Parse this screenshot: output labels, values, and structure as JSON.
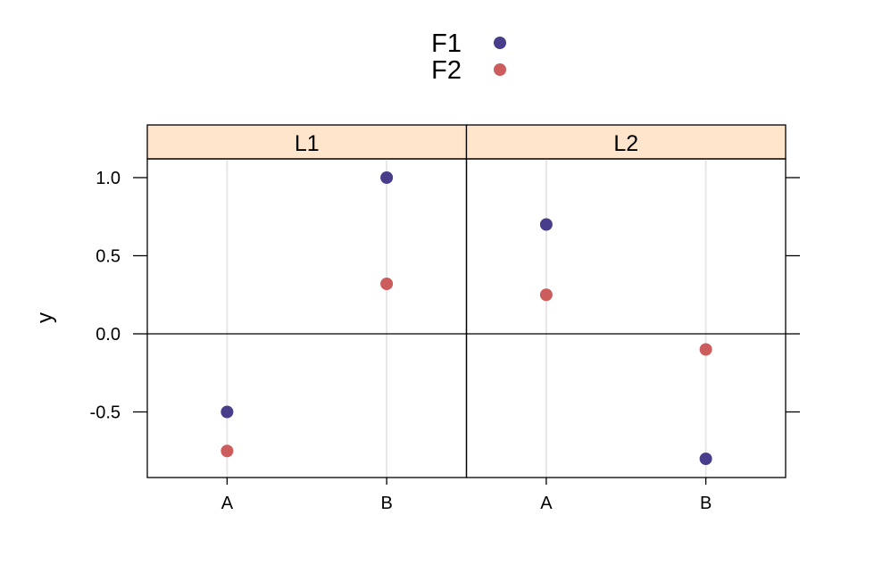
{
  "chart_data": {
    "type": "scatter",
    "title": "",
    "xlabel": "",
    "ylabel": "y",
    "ylim": [
      -0.92,
      1.12
    ],
    "yticks": [
      -0.5,
      0.0,
      0.5,
      1.0
    ],
    "ytick_labels": [
      "-0.5",
      "0.0",
      "0.5",
      "1.0"
    ],
    "categories": [
      "A",
      "B"
    ],
    "reference_line_y": 0,
    "grid": "vertical",
    "legend": {
      "position": "top-center"
    },
    "panels": [
      {
        "label": "L1"
      },
      {
        "label": "L2"
      }
    ],
    "series": [
      {
        "name": "F1",
        "color": "#483D8B",
        "values": {
          "L1": [
            -0.5,
            1.0
          ],
          "L2": [
            0.7,
            -0.8
          ]
        }
      },
      {
        "name": "F2",
        "color": "#CD5C5C",
        "values": {
          "L1": [
            -0.75,
            0.32
          ],
          "L2": [
            0.25,
            -0.1
          ]
        }
      }
    ],
    "strip_color": "#FFE5CC"
  }
}
